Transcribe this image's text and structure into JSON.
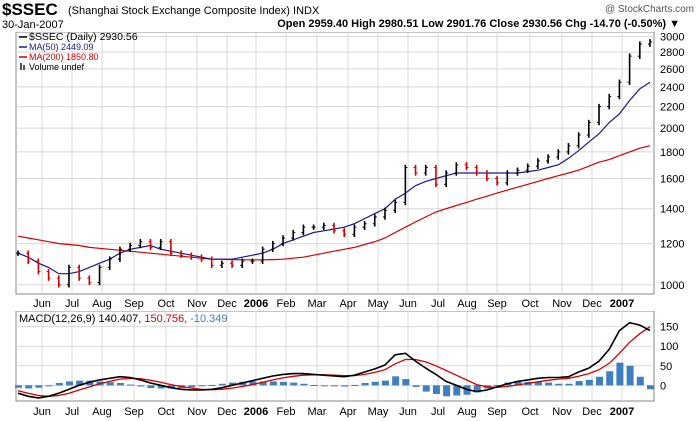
{
  "header": {
    "symbol": "$SSEC",
    "name": "(Shanghai Stock Exchange Composite Index) INDX",
    "date": "30-Jan-2007",
    "quote": "Open 2959.40  High 2980.51  Low 2901.76  Close 2930.56  Chg -14.70 (-0.50%) ▼",
    "brand": "@ StockCharts.com"
  },
  "colors": {
    "up": "#000000",
    "down": "#d40000",
    "ma50": "#1a1a8c",
    "ma200": "#d40000",
    "macd": "#000000",
    "signal": "#d40000",
    "hist": "#3d7fbf",
    "grid": "#d8d8d8"
  },
  "chart_data": [
    {
      "type": "line",
      "title": "$SSEC (Shanghai Stock Exchange Composite Index) INDX",
      "ylim": [
        960,
        3060
      ],
      "yscale": "log",
      "y_ticks": [
        1000,
        1200,
        1400,
        1600,
        1800,
        2000,
        2200,
        2400,
        2600,
        2800,
        3000
      ],
      "x_labels": [
        "Jun",
        "Jul",
        "Aug",
        "Sep",
        "Oct",
        "Nov",
        "Dec",
        "2006",
        "Feb",
        "Mar",
        "Apr",
        "May",
        "Jun",
        "Jul",
        "Aug",
        "Sep",
        "Oct",
        "Nov",
        "Dec",
        "2007"
      ],
      "legend": [
        {
          "label": "$SSEC (Daily) 2930.56",
          "key": "price"
        },
        {
          "label": "MA(50) 2449.09",
          "key": "ma50"
        },
        {
          "label": "MA(200) 1850.80",
          "key": "ma200"
        },
        {
          "label": "Volume undef",
          "key": "volume"
        }
      ],
      "series": [
        {
          "name": "$SSEC",
          "values": [
            1150,
            1110,
            1060,
            1030,
            1000,
            1080,
            1030,
            1010,
            1080,
            1120,
            1170,
            1190,
            1210,
            1180,
            1210,
            1150,
            1140,
            1130,
            1120,
            1090,
            1100,
            1090,
            1110,
            1110,
            1170,
            1200,
            1230,
            1260,
            1290,
            1290,
            1300,
            1270,
            1250,
            1290,
            1310,
            1350,
            1390,
            1440,
            1680,
            1640,
            1680,
            1560,
            1640,
            1700,
            1680,
            1640,
            1600,
            1570,
            1640,
            1660,
            1690,
            1730,
            1760,
            1800,
            1850,
            1940,
            2050,
            2200,
            2300,
            2450,
            2750,
            2900,
            2930
          ]
        },
        {
          "name": "MA(50)",
          "values": [
            1150,
            1130,
            1100,
            1080,
            1050,
            1050,
            1060,
            1080,
            1100,
            1120,
            1150,
            1170,
            1180,
            1190,
            1170,
            1160,
            1150,
            1140,
            1130,
            1120,
            1120,
            1120,
            1130,
            1140,
            1150,
            1170,
            1200,
            1220,
            1240,
            1260,
            1270,
            1280,
            1290,
            1310,
            1340,
            1370,
            1400,
            1460,
            1500,
            1550,
            1580,
            1600,
            1620,
            1640,
            1640,
            1640,
            1640,
            1640,
            1640,
            1640,
            1650,
            1660,
            1680,
            1700,
            1750,
            1810,
            1880,
            1950,
            2050,
            2130,
            2260,
            2380,
            2450
          ]
        },
        {
          "name": "MA(200)",
          "values": [
            1240,
            1230,
            1220,
            1210,
            1200,
            1195,
            1190,
            1180,
            1175,
            1170,
            1165,
            1160,
            1155,
            1150,
            1145,
            1140,
            1135,
            1130,
            1125,
            1120,
            1120,
            1118,
            1117,
            1117,
            1117,
            1118,
            1120,
            1125,
            1130,
            1140,
            1150,
            1160,
            1170,
            1180,
            1195,
            1210,
            1230,
            1260,
            1290,
            1320,
            1350,
            1380,
            1400,
            1420,
            1440,
            1460,
            1480,
            1500,
            1520,
            1540,
            1560,
            1580,
            1600,
            1620,
            1640,
            1660,
            1690,
            1720,
            1740,
            1770,
            1800,
            1830,
            1850
          ]
        }
      ]
    },
    {
      "type": "line",
      "title": "MACD(12,26,9) 140.407, 150.756, -10.349",
      "ylim": [
        -40,
        190
      ],
      "y_ticks": [
        0,
        50,
        100,
        150
      ],
      "x_labels": [
        "Jun",
        "Jul",
        "Aug",
        "Sep",
        "Oct",
        "Nov",
        "Dec",
        "2006",
        "Feb",
        "Mar",
        "Apr",
        "May",
        "Jun",
        "Jul",
        "Aug",
        "Sep",
        "Oct",
        "Nov",
        "Dec",
        "2007"
      ],
      "legend": [
        {
          "label": "MACD(12,26,9)",
          "key": "macd"
        },
        {
          "label": "140.407,",
          "key": "macd"
        },
        {
          "label": "150.756,",
          "key": "signal"
        },
        {
          "label": "-10.349",
          "key": "hist"
        }
      ],
      "series": [
        {
          "name": "MACD",
          "values": [
            -20,
            -28,
            -32,
            -28,
            -20,
            -10,
            0,
            8,
            14,
            18,
            22,
            20,
            14,
            6,
            0,
            -6,
            -10,
            -12,
            -12,
            -10,
            -6,
            0,
            6,
            12,
            18,
            24,
            28,
            30,
            30,
            28,
            26,
            24,
            22,
            26,
            34,
            42,
            52,
            78,
            82,
            62,
            44,
            28,
            10,
            0,
            -10,
            -16,
            -12,
            -4,
            4,
            10,
            14,
            18,
            20,
            20,
            22,
            34,
            44,
            62,
            92,
            140,
            160,
            154,
            140
          ]
        },
        {
          "name": "Signal",
          "values": [
            -14,
            -20,
            -26,
            -28,
            -26,
            -20,
            -12,
            -4,
            4,
            10,
            16,
            18,
            17,
            13,
            8,
            2,
            -3,
            -7,
            -10,
            -11,
            -10,
            -7,
            -3,
            2,
            8,
            14,
            19,
            23,
            26,
            27,
            27,
            26,
            25,
            25,
            28,
            33,
            40,
            55,
            66,
            66,
            60,
            50,
            38,
            26,
            14,
            2,
            -4,
            -5,
            -3,
            1,
            5,
            9,
            13,
            16,
            18,
            23,
            30,
            40,
            56,
            82,
            110,
            132,
            150
          ]
        },
        {
          "name": "Histogram",
          "values": [
            -6,
            -8,
            -6,
            0,
            6,
            10,
            12,
            12,
            10,
            8,
            6,
            2,
            -3,
            -7,
            -8,
            -8,
            -7,
            -5,
            -2,
            1,
            4,
            7,
            9,
            10,
            10,
            10,
            9,
            7,
            4,
            1,
            -1,
            -2,
            -3,
            1,
            6,
            9,
            12,
            23,
            16,
            -4,
            -16,
            -22,
            -28,
            -26,
            -24,
            -18,
            -8,
            1,
            7,
            9,
            9,
            9,
            7,
            4,
            4,
            11,
            14,
            22,
            36,
            58,
            50,
            22,
            -10
          ]
        }
      ]
    }
  ]
}
